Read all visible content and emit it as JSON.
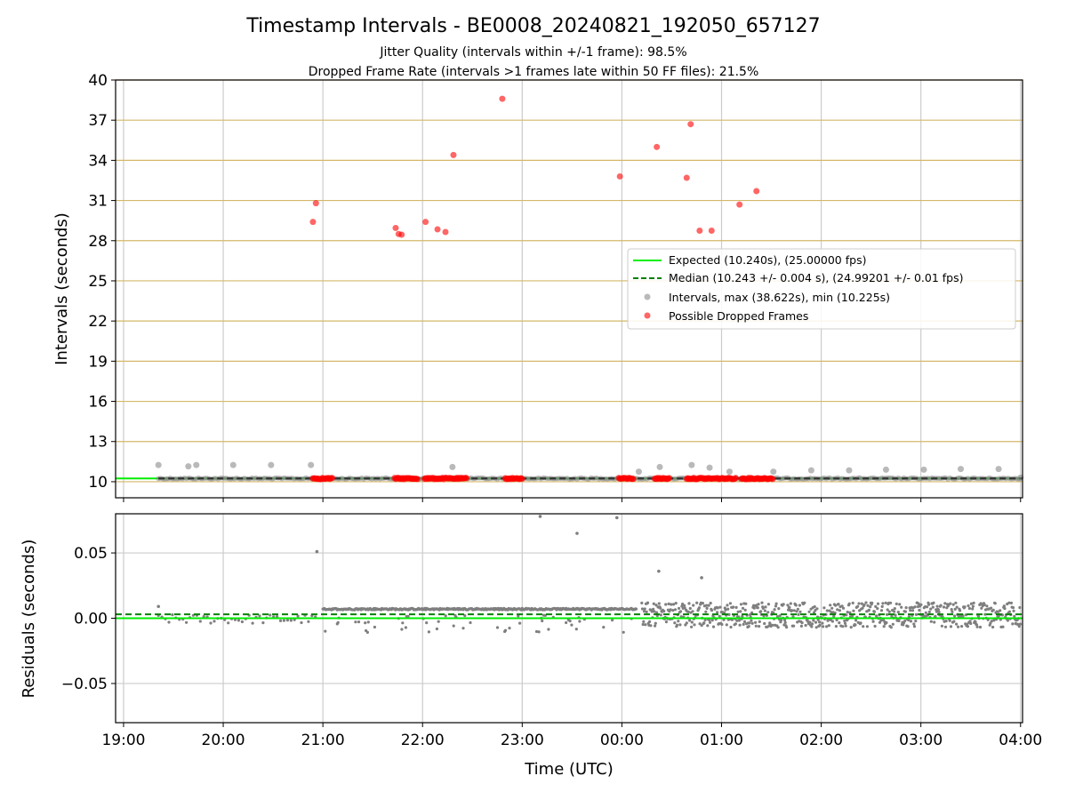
{
  "chart_data": {
    "type": "scatter",
    "title": "Timestamp Intervals - BE0008_20240821_192050_657127",
    "subtitle_lines": [
      "Jitter Quality (intervals within +/-1 frame): 98.5%",
      "Dropped Frame Rate (intervals >1 frames late within 50 FF files): 21.5%"
    ],
    "xlabel": "Time (UTC)",
    "x_ticks": [
      "19:00",
      "20:00",
      "21:00",
      "22:00",
      "23:00",
      "00:00",
      "01:00",
      "02:00",
      "03:00",
      "04:00"
    ],
    "x_range_hours": [
      18.92,
      28.02
    ],
    "colors": {
      "expected": "#00ee00",
      "median": "#008000",
      "intervals": "#7f7f7f",
      "dropped": "#ff0000",
      "hgrid_top": "#d4b86a",
      "grid": "#cccccc"
    },
    "top_panel": {
      "ylabel": "Intervals (seconds)",
      "ylim": [
        8.8,
        40
      ],
      "y_ticks": [
        10,
        13,
        16,
        19,
        22,
        25,
        28,
        31,
        34,
        37,
        40
      ],
      "expected_y": 10.24,
      "median_y": 10.243,
      "legend_position": "center-right",
      "legend": [
        "Expected (10.240s), (25.00000 fps)",
        "Median (10.243 +/- 0.004 s), (24.99201 +/- 0.01 fps)",
        "Intervals, max (38.622s), min (10.225s)",
        "Possible Dropped Frames"
      ],
      "interval_outliers": [
        [
          19.35,
          11.25
        ],
        [
          19.65,
          11.15
        ],
        [
          19.73,
          11.25
        ],
        [
          20.1,
          11.25
        ],
        [
          20.48,
          11.25
        ],
        [
          20.88,
          11.25
        ],
        [
          22.3,
          11.1
        ],
        [
          24.17,
          10.75
        ],
        [
          24.38,
          11.1
        ],
        [
          24.7,
          11.25
        ],
        [
          24.88,
          11.05
        ],
        [
          25.08,
          10.75
        ],
        [
          25.52,
          10.75
        ],
        [
          25.9,
          10.85
        ],
        [
          26.28,
          10.85
        ],
        [
          26.65,
          10.9
        ],
        [
          27.03,
          10.9
        ],
        [
          27.4,
          10.95
        ],
        [
          27.78,
          10.95
        ],
        [
          28.0,
          10.3
        ]
      ],
      "dropped_points": [
        [
          20.9,
          29.4
        ],
        [
          20.93,
          30.8
        ],
        [
          21.73,
          28.95
        ],
        [
          21.76,
          28.5
        ],
        [
          21.79,
          28.45
        ],
        [
          22.03,
          29.4
        ],
        [
          22.15,
          28.85
        ],
        [
          22.23,
          28.65
        ],
        [
          22.31,
          34.4
        ],
        [
          22.8,
          38.6
        ],
        [
          23.98,
          32.8
        ],
        [
          24.35,
          35.0
        ],
        [
          24.65,
          32.7
        ],
        [
          24.69,
          36.7
        ],
        [
          24.78,
          28.75
        ],
        [
          24.9,
          28.75
        ],
        [
          25.18,
          30.7
        ],
        [
          25.35,
          31.7
        ]
      ],
      "dropped_bands": [
        [
          20.9,
          21.1
        ],
        [
          21.72,
          21.95
        ],
        [
          22.02,
          22.45
        ],
        [
          22.83,
          23.0
        ],
        [
          23.97,
          24.12
        ],
        [
          24.33,
          24.48
        ],
        [
          24.65,
          25.15
        ],
        [
          25.2,
          25.52
        ]
      ]
    },
    "bottom_panel": {
      "ylabel": "Residuals (seconds)",
      "ylim": [
        -0.08,
        0.08
      ],
      "y_ticks": [
        "0.05",
        "0.00",
        "−0.05"
      ],
      "y_tick_values": [
        0.05,
        0.0,
        -0.05
      ],
      "expected_y": 0.0,
      "median_y": 0.003,
      "plateau_y": 0.007,
      "plateau_range": [
        21.0,
        24.15
      ],
      "outliers": [
        [
          19.35,
          0.009
        ],
        [
          20.94,
          0.051
        ],
        [
          23.18,
          0.078
        ],
        [
          23.55,
          0.065
        ],
        [
          23.95,
          0.077
        ],
        [
          24.37,
          0.036
        ],
        [
          24.8,
          0.031
        ]
      ]
    }
  }
}
